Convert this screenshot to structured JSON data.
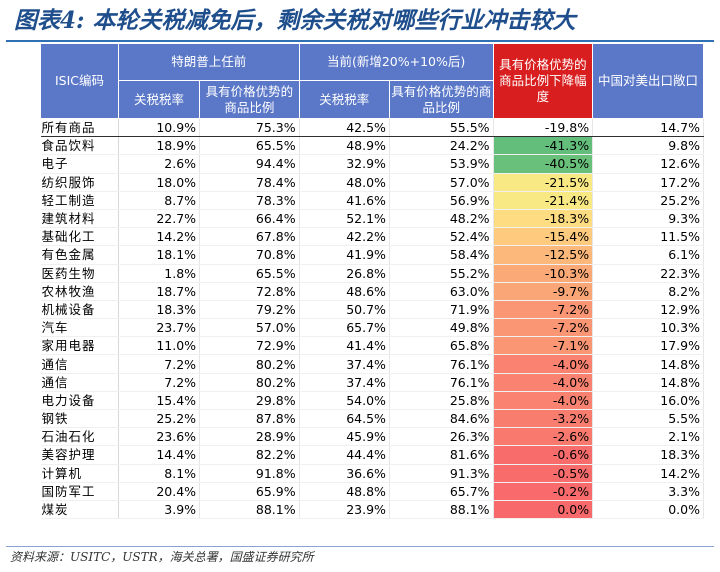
{
  "title": "图表4:  本轮关税减免后，剩余关税对哪些行业冲击较大",
  "headers": {
    "isic": "ISIC编码",
    "group_trump": "特朗普上任前",
    "group_current": "当前(新增20%+10%后)",
    "tariff_rate": "关税税率",
    "price_adv_share": "具有价格优势的商品比例",
    "decline": "具有价格优势的商品比例下降幅度",
    "china_share": "中国对美出口敞口"
  },
  "rows": [
    {
      "name": "所有商品",
      "pre_rate": "10.9%",
      "pre_adv": "75.3%",
      "cur_rate": "42.5%",
      "cur_adv": "55.5%",
      "decline": "-19.8%",
      "china": "14.7%"
    },
    {
      "name": "食品饮料",
      "pre_rate": "18.9%",
      "pre_adv": "65.5%",
      "cur_rate": "48.9%",
      "cur_adv": "24.2%",
      "decline": "-41.3%",
      "china": "9.8%"
    },
    {
      "name": "电子",
      "pre_rate": "2.6%",
      "pre_adv": "94.4%",
      "cur_rate": "32.9%",
      "cur_adv": "53.9%",
      "decline": "-40.5%",
      "china": "12.6%"
    },
    {
      "name": "纺织服饰",
      "pre_rate": "18.0%",
      "pre_adv": "78.4%",
      "cur_rate": "48.0%",
      "cur_adv": "57.0%",
      "decline": "-21.5%",
      "china": "17.2%"
    },
    {
      "name": "轻工制造",
      "pre_rate": "8.7%",
      "pre_adv": "78.3%",
      "cur_rate": "41.6%",
      "cur_adv": "56.9%",
      "decline": "-21.4%",
      "china": "25.2%"
    },
    {
      "name": "建筑材料",
      "pre_rate": "22.7%",
      "pre_adv": "66.4%",
      "cur_rate": "52.1%",
      "cur_adv": "48.2%",
      "decline": "-18.3%",
      "china": "9.3%"
    },
    {
      "name": "基础化工",
      "pre_rate": "14.2%",
      "pre_adv": "67.8%",
      "cur_rate": "42.2%",
      "cur_adv": "52.4%",
      "decline": "-15.4%",
      "china": "11.5%"
    },
    {
      "name": "有色金属",
      "pre_rate": "18.1%",
      "pre_adv": "70.8%",
      "cur_rate": "41.9%",
      "cur_adv": "58.4%",
      "decline": "-12.5%",
      "china": "6.1%"
    },
    {
      "name": "医药生物",
      "pre_rate": "1.8%",
      "pre_adv": "65.5%",
      "cur_rate": "26.8%",
      "cur_adv": "55.2%",
      "decline": "-10.3%",
      "china": "22.3%"
    },
    {
      "name": "农林牧渔",
      "pre_rate": "18.7%",
      "pre_adv": "72.8%",
      "cur_rate": "48.6%",
      "cur_adv": "63.0%",
      "decline": "-9.7%",
      "china": "8.2%"
    },
    {
      "name": "机械设备",
      "pre_rate": "18.3%",
      "pre_adv": "79.2%",
      "cur_rate": "50.7%",
      "cur_adv": "71.9%",
      "decline": "-7.2%",
      "china": "12.9%"
    },
    {
      "name": "汽车",
      "pre_rate": "23.7%",
      "pre_adv": "57.0%",
      "cur_rate": "65.7%",
      "cur_adv": "49.8%",
      "decline": "-7.2%",
      "china": "10.3%"
    },
    {
      "name": "家用电器",
      "pre_rate": "11.0%",
      "pre_adv": "72.9%",
      "cur_rate": "41.4%",
      "cur_adv": "65.8%",
      "decline": "-7.1%",
      "china": "17.9%"
    },
    {
      "name": "通信",
      "pre_rate": "7.2%",
      "pre_adv": "80.2%",
      "cur_rate": "37.4%",
      "cur_adv": "76.1%",
      "decline": "-4.0%",
      "china": "14.8%"
    },
    {
      "name": "通信",
      "pre_rate": "7.2%",
      "pre_adv": "80.2%",
      "cur_rate": "37.4%",
      "cur_adv": "76.1%",
      "decline": "-4.0%",
      "china": "14.8%"
    },
    {
      "name": "电力设备",
      "pre_rate": "15.4%",
      "pre_adv": "29.8%",
      "cur_rate": "54.0%",
      "cur_adv": "25.8%",
      "decline": "-4.0%",
      "china": "16.0%"
    },
    {
      "name": "钢铁",
      "pre_rate": "25.2%",
      "pre_adv": "87.8%",
      "cur_rate": "64.5%",
      "cur_adv": "84.6%",
      "decline": "-3.2%",
      "china": "5.5%"
    },
    {
      "name": "石油石化",
      "pre_rate": "23.6%",
      "pre_adv": "28.9%",
      "cur_rate": "45.9%",
      "cur_adv": "26.3%",
      "decline": "-2.6%",
      "china": "2.1%"
    },
    {
      "name": "美容护理",
      "pre_rate": "14.4%",
      "pre_adv": "82.2%",
      "cur_rate": "44.4%",
      "cur_adv": "81.6%",
      "decline": "-0.6%",
      "china": "18.3%"
    },
    {
      "name": "计算机",
      "pre_rate": "8.1%",
      "pre_adv": "91.8%",
      "cur_rate": "36.6%",
      "cur_adv": "91.3%",
      "decline": "-0.5%",
      "china": "14.2%"
    },
    {
      "name": "国防军工",
      "pre_rate": "20.4%",
      "pre_adv": "65.9%",
      "cur_rate": "48.8%",
      "cur_adv": "65.7%",
      "decline": "-0.2%",
      "china": "3.3%"
    },
    {
      "name": "煤炭",
      "pre_rate": "3.9%",
      "pre_adv": "88.1%",
      "cur_rate": "23.9%",
      "cur_adv": "88.1%",
      "decline": "0.0%",
      "china": "0.0%"
    }
  ],
  "source": "资料来源：USITC，USTR，海关总署，国盛证券研究所",
  "colors": {
    "header_blue": "#5b78c8",
    "header_red": "#d81e1e",
    "title_blue": "#1f4e8c",
    "scale_green": "#63be7b",
    "scale_yellow": "#ffeb84",
    "scale_red": "#f8696b"
  }
}
